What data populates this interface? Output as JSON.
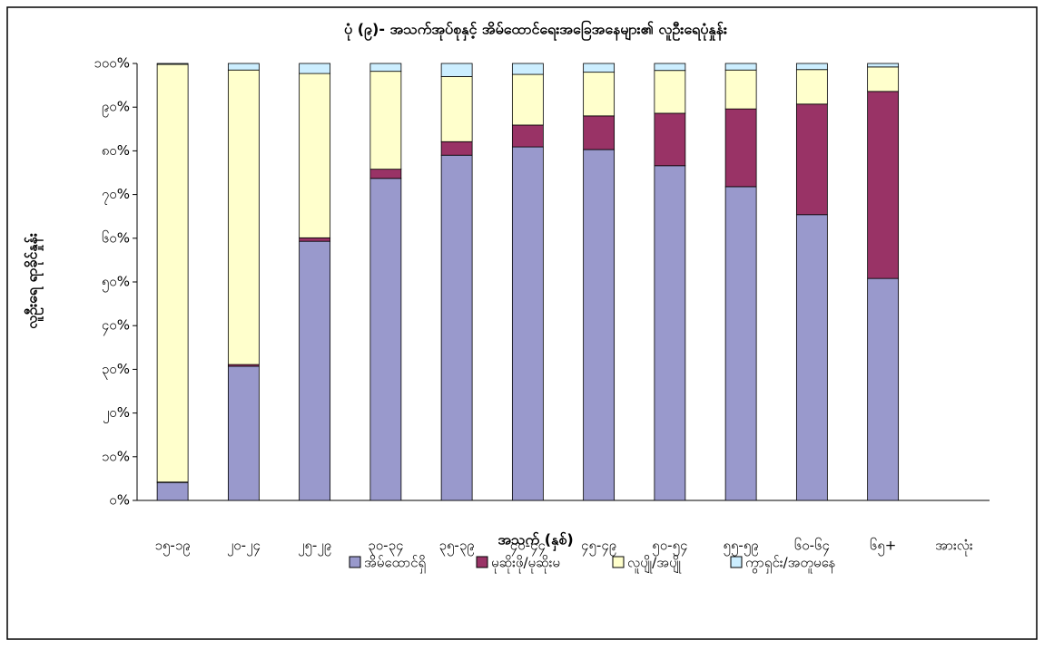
{
  "chart_data": {
    "type": "bar",
    "stacked": true,
    "title": "ပုံ (၉)- အသက်အုပ်စုနှင့် အိမ်ထောင်ရေးအခြေအနေများ၏ လူဦးရေပုံနှုန်း",
    "x_label": "အသက် (နှစ်)",
    "y_label": "လူဦးရေ ရာခိုင်နှုန်း",
    "categories": [
      "၁၅-၁၉",
      "၂၀-၂၄",
      "၂၅-၂၉",
      "၃၀-၃၄",
      "၃၅-၃၉",
      "၄၀-၄၄",
      "၄၅-၄၉",
      "၅၀-၅၄",
      "၅၅-၅၉",
      "၆၀-၆၄",
      "၆၅+",
      "အားလုံး"
    ],
    "series": [
      {
        "name": "အိမ်ထောင်ရှိ",
        "color": "#9999cc",
        "values": [
          4.1,
          30.7,
          59.3,
          73.7,
          79.0,
          80.9,
          80.3,
          76.6,
          71.8,
          65.4,
          50.8,
          null
        ]
      },
      {
        "name": "မုဆိုးဖို/မုဆိုးမ",
        "color": "#993366",
        "values": [
          0.1,
          0.4,
          0.8,
          2.1,
          3.1,
          5.0,
          7.7,
          12.0,
          17.8,
          25.3,
          42.8,
          null
        ]
      },
      {
        "name": "လူပျို/အပျို",
        "color": "#ffffcc",
        "values": [
          95.6,
          67.4,
          37.6,
          22.4,
          14.9,
          11.6,
          10.0,
          9.8,
          8.9,
          7.9,
          5.6,
          null
        ]
      },
      {
        "name": "ကွာရှင်း/အတူမနေ",
        "color": "#cceeff",
        "values": [
          0.2,
          1.5,
          2.3,
          1.8,
          3.0,
          2.5,
          2.0,
          1.6,
          1.5,
          1.4,
          0.8,
          null
        ]
      }
    ],
    "ylim": [
      0,
      100
    ],
    "yticks": [
      {
        "value": 0,
        "label": "၀%"
      },
      {
        "value": 10,
        "label": "၁၀%"
      },
      {
        "value": 20,
        "label": "၂၀%"
      },
      {
        "value": 30,
        "label": "၃၀%"
      },
      {
        "value": 40,
        "label": "၄၀%"
      },
      {
        "value": 50,
        "label": "၅၀%"
      },
      {
        "value": 60,
        "label": "၆၀%"
      },
      {
        "value": 70,
        "label": "၇၀%"
      },
      {
        "value": 80,
        "label": "၈၀%"
      },
      {
        "value": 90,
        "label": "၉၀%"
      },
      {
        "value": 100,
        "label": "၁၀၀%"
      }
    ],
    "legend": "bottom"
  }
}
